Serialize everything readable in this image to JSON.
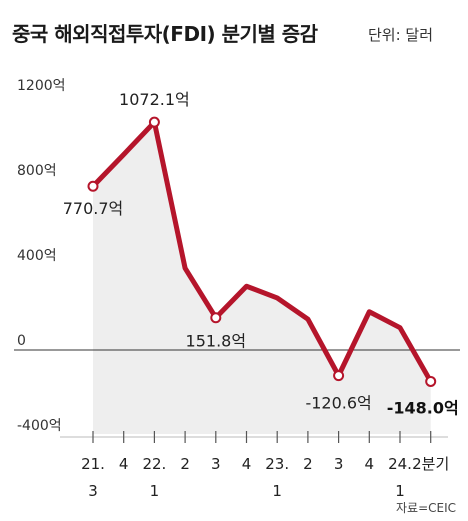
{
  "header": {
    "title": "중국 해외직접투자(FDI) 분기별 증감",
    "unit": "단위: 달러"
  },
  "source": "자료=CEIC",
  "colors": {
    "line": "#b5152b",
    "area": "#eeeeee",
    "grid": "#999999",
    "zero_line": "#333333"
  },
  "chart_data": {
    "type": "area",
    "title": "중국 해외직접투자(FDI) 분기별 증감",
    "unit": "억 달러",
    "ylim": [
      -400,
      1200
    ],
    "y_ticks": [
      {
        "value": 1200,
        "label": "1200억"
      },
      {
        "value": 800,
        "label": "800억"
      },
      {
        "value": 400,
        "label": "400억"
      },
      {
        "value": 0,
        "label": "0"
      },
      {
        "value": -400,
        "label": "-400억"
      }
    ],
    "x_ticks": [
      {
        "line1": "21.",
        "line2": "3"
      },
      {
        "line1": "4",
        "line2": ""
      },
      {
        "line1": "22.",
        "line2": "1"
      },
      {
        "line1": "2",
        "line2": ""
      },
      {
        "line1": "3",
        "line2": ""
      },
      {
        "line1": "4",
        "line2": ""
      },
      {
        "line1": "23.",
        "line2": "1"
      },
      {
        "line1": "2",
        "line2": ""
      },
      {
        "line1": "3",
        "line2": ""
      },
      {
        "line1": "4",
        "line2": ""
      },
      {
        "line1": "24.",
        "line2": "1"
      },
      {
        "line1": "2분기",
        "line2": ""
      }
    ],
    "categories": [
      "2021 Q3",
      "2021 Q4",
      "2022 Q1",
      "2022 Q2",
      "2022 Q3",
      "2022 Q4",
      "2023 Q1",
      "2023 Q2",
      "2023 Q3",
      "2023 Q4",
      "2024 Q1",
      "2024 Q2"
    ],
    "values": [
      770.7,
      920,
      1072.1,
      385,
      151.8,
      300,
      245,
      145,
      -120.6,
      180,
      105,
      -148.0
    ],
    "data_labels": [
      {
        "index": 0,
        "text": "770.7억",
        "bold": false
      },
      {
        "index": 2,
        "text": "1072.1억",
        "bold": false
      },
      {
        "index": 4,
        "text": "151.8억",
        "bold": false
      },
      {
        "index": 8,
        "text": "-120.6억",
        "bold": false
      },
      {
        "index": 11,
        "text": "-148.0억",
        "bold": true
      }
    ],
    "marked_points": [
      0,
      2,
      4,
      8,
      11
    ],
    "grid": false
  }
}
